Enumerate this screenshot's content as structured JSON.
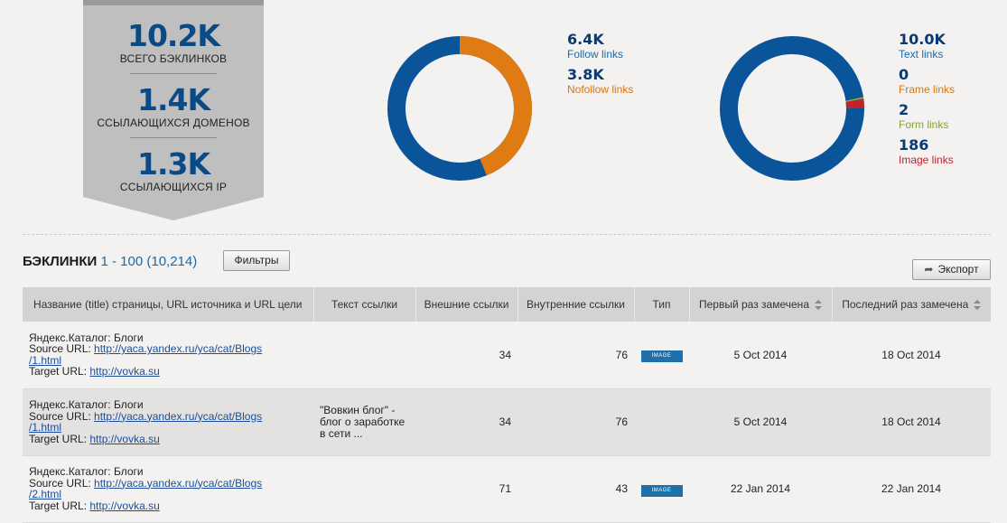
{
  "stats": {
    "backlinks_value": "10.2K",
    "backlinks_label": "ВСЕГО БЭКЛИНКОВ",
    "domains_value": "1.4K",
    "domains_label": "ССЫЛАЮЩИХСЯ ДОМЕНОВ",
    "ips_value": "1.3K",
    "ips_label": "ССЫЛАЮЩИХСЯ IP"
  },
  "follow_legend": [
    {
      "value": "6.4K",
      "label": "Follow links",
      "color": "#0a5599"
    },
    {
      "value": "3.8K",
      "label": "Nofollow links",
      "color": "#e07b14"
    }
  ],
  "type_legend": [
    {
      "value": "10.0K",
      "label": "Text links",
      "color": "#0a5599"
    },
    {
      "value": "0",
      "label": "Frame links",
      "color": "#e07b14"
    },
    {
      "value": "2",
      "label": "Form links",
      "color": "#8ab32e"
    },
    {
      "value": "186",
      "label": "Image links",
      "color": "#c4202e"
    }
  ],
  "section": {
    "title": "БЭКЛИНКИ",
    "range": "1 - 100 (10,214)",
    "filters_label": "Фильтры",
    "export_label": "Экспорт"
  },
  "table": {
    "headers": [
      "Название (title) страницы, URL источника и URL цели",
      "Текст ссылки",
      "Внешние ссылки",
      "Внутренние ссылки",
      "Тип",
      "Первый раз замечена",
      "Последний раз замечена"
    ],
    "source_prefix": "Source URL:",
    "target_prefix": "Target URL:",
    "rows": [
      {
        "title": "Яндекс.Каталог: Блоги",
        "source_a": "http://yaca.yandex.ru/yca/cat/Blogs",
        "source_b": "/1.html",
        "target": "http://vovka.su",
        "anchor": "",
        "external": "34",
        "internal": "76",
        "type": "IMAGE",
        "first_seen": "5 Oct 2014",
        "last_seen": "18 Oct 2014"
      },
      {
        "title": "Яндекс.Каталог: Блоги",
        "source_a": "http://yaca.yandex.ru/yca/cat/Blogs",
        "source_b": "/1.html",
        "target": "http://vovka.su",
        "anchor": "\"Вовкин блог\" - блог о заработке в сети ...",
        "external": "34",
        "internal": "76",
        "type": "",
        "first_seen": "5 Oct 2014",
        "last_seen": "18 Oct 2014"
      },
      {
        "title": "Яндекс.Каталог: Блоги",
        "source_a": "http://yaca.yandex.ru/yca/cat/Blogs",
        "source_b": "/2.html",
        "target": "http://vovka.su",
        "anchor": "",
        "external": "71",
        "internal": "43",
        "type": "IMAGE",
        "first_seen": "22 Jan 2014",
        "last_seen": "22 Jan 2014"
      }
    ]
  }
}
